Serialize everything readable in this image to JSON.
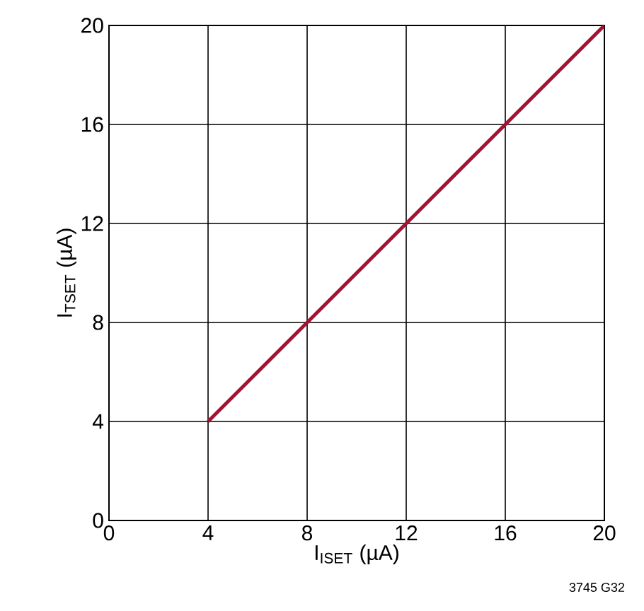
{
  "chart_data": {
    "type": "line",
    "xlabel": "I$_{ISET}$ (µA)",
    "ylabel": "I$_{TSET}$ (µA)",
    "x": [
      4,
      20
    ],
    "series": [
      {
        "color": "#a3132f",
        "values": [
          4,
          20
        ]
      }
    ],
    "xlim": [
      0,
      20
    ],
    "ylim": [
      0,
      20
    ],
    "xticks": [
      0,
      4,
      8,
      12,
      16,
      20
    ],
    "yticks": [
      0,
      4,
      8,
      12,
      16,
      20
    ],
    "grid": true,
    "marker": "none",
    "line_style": "solid",
    "annotations": [
      "3745 G32"
    ]
  }
}
